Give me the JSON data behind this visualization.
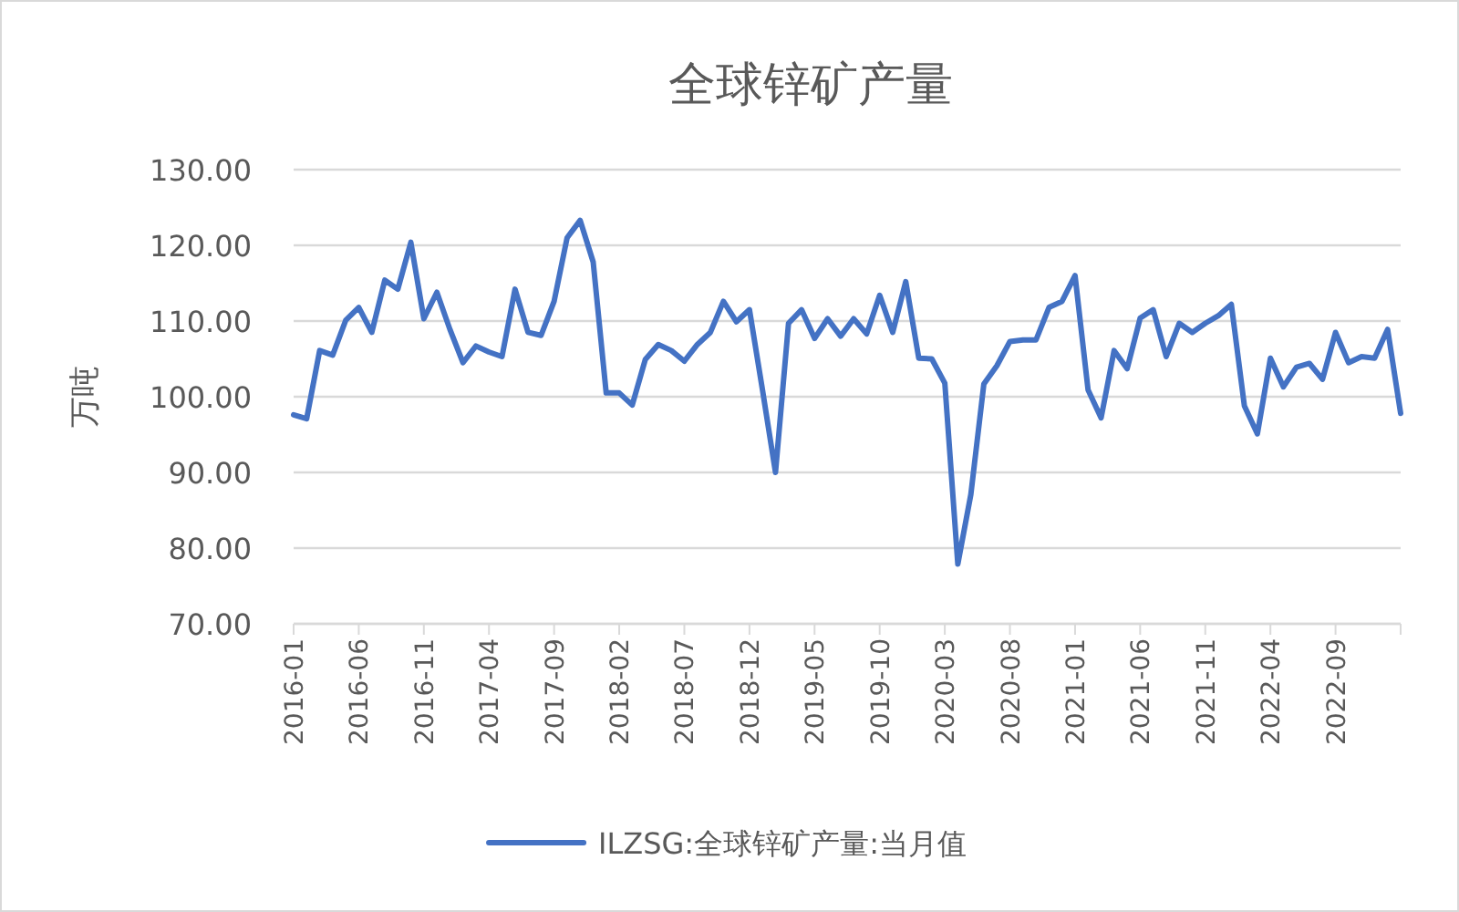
{
  "chart_data": {
    "type": "line",
    "title": "全球锌矿产量",
    "ylabel": "万吨",
    "categories": [
      "2016-01",
      null,
      null,
      null,
      null,
      "2016-06",
      null,
      null,
      null,
      null,
      "2016-11",
      null,
      null,
      null,
      null,
      "2017-04",
      null,
      null,
      null,
      null,
      "2017-09",
      null,
      null,
      null,
      null,
      "2018-02",
      null,
      null,
      null,
      null,
      "2018-07",
      null,
      null,
      null,
      null,
      "2018-12",
      null,
      null,
      null,
      null,
      "2019-05",
      null,
      null,
      null,
      null,
      "2019-10",
      null,
      null,
      null,
      null,
      "2020-03",
      null,
      null,
      null,
      null,
      "2020-08",
      null,
      null,
      null,
      null,
      "2021-01",
      null,
      null,
      null,
      null,
      "2021-06",
      null,
      null,
      null,
      null,
      "2021-11",
      null,
      null,
      null,
      null,
      "2022-04",
      null,
      null,
      null,
      null,
      "2022-09",
      null,
      null,
      null,
      null,
      null
    ],
    "series": [
      {
        "name": "ILZSG:全球锌矿产量:当月值",
        "color": "#4472c4",
        "values": [
          97.6,
          97.1,
          106.1,
          105.5,
          110.1,
          111.8,
          108.5,
          115.4,
          114.2,
          120.4,
          110.3,
          113.8,
          108.9,
          104.5,
          106.7,
          105.9,
          105.3,
          114.2,
          108.5,
          108.1,
          112.6,
          121.0,
          123.3,
          117.8,
          100.5,
          100.5,
          98.9,
          104.9,
          106.9,
          106.1,
          104.7,
          106.9,
          108.5,
          112.6,
          109.9,
          111.5,
          100.9,
          90.0,
          109.7,
          111.5,
          107.7,
          110.3,
          108.0,
          110.3,
          108.3,
          113.4,
          108.5,
          115.2,
          105.1,
          105.0,
          101.8,
          77.9,
          87.1,
          101.7,
          104.1,
          107.3,
          107.5,
          107.5,
          111.8,
          112.6,
          116.0,
          100.9,
          97.2,
          106.1,
          103.7,
          110.4,
          111.5,
          105.3,
          109.7,
          108.5,
          109.7,
          110.7,
          112.2,
          98.8,
          95.1,
          105.1,
          101.3,
          103.9,
          104.4,
          102.3,
          108.5,
          104.5,
          105.3,
          105.1,
          108.9,
          97.8
        ]
      }
    ],
    "ylim": [
      70,
      130
    ],
    "yticks": [
      {
        "value": 70,
        "label": "70.00"
      },
      {
        "value": 80,
        "label": "80.00"
      },
      {
        "value": 90,
        "label": "90.00"
      },
      {
        "value": 100,
        "label": "100.00"
      },
      {
        "value": 110,
        "label": "110.00"
      },
      {
        "value": 120,
        "label": "120.00"
      },
      {
        "value": 130,
        "label": "130.00"
      }
    ],
    "grid": "y",
    "legend": "bottom"
  }
}
